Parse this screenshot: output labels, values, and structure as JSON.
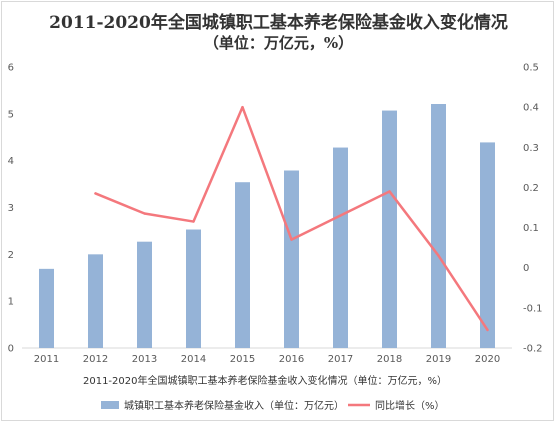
{
  "chart_data": {
    "type": "bar",
    "title": "2011-2020年全国城镇职工基本养老保险基金收入变化情况",
    "subtitle": "（单位：万亿元，%）",
    "xlabel": "2011-2020年全国城镇职工基本养老保险基金收入变化情况（单位：万亿元，%）",
    "categories": [
      "2011",
      "2012",
      "2013",
      "2014",
      "2015",
      "2016",
      "2017",
      "2018",
      "2019",
      "2020"
    ],
    "series": [
      {
        "name": "城镇职工基本养老保险基金收入（单位：万亿元）",
        "type": "bar",
        "axis": "left",
        "color": "#95b3d7",
        "values": [
          1.69,
          2.0,
          2.27,
          2.53,
          3.54,
          3.79,
          4.28,
          5.07,
          5.21,
          4.39
        ]
      },
      {
        "name": "同比增长（%）",
        "type": "line",
        "axis": "right",
        "color": "#f4787d",
        "values": [
          null,
          0.185,
          0.135,
          0.115,
          0.4,
          0.07,
          0.13,
          0.19,
          0.03,
          -0.155
        ]
      }
    ],
    "ylim_left": [
      0,
      6
    ],
    "yticks_left": [
      "0",
      "1",
      "2",
      "3",
      "4",
      "5",
      "6"
    ],
    "ylim_right": [
      -0.2,
      0.5
    ],
    "yticks_right": [
      "-0.2",
      "-0.1",
      "0",
      "0.1",
      "0.2",
      "0.3",
      "0.4",
      "0.5"
    ],
    "grid": false,
    "legend_position": "bottom"
  }
}
